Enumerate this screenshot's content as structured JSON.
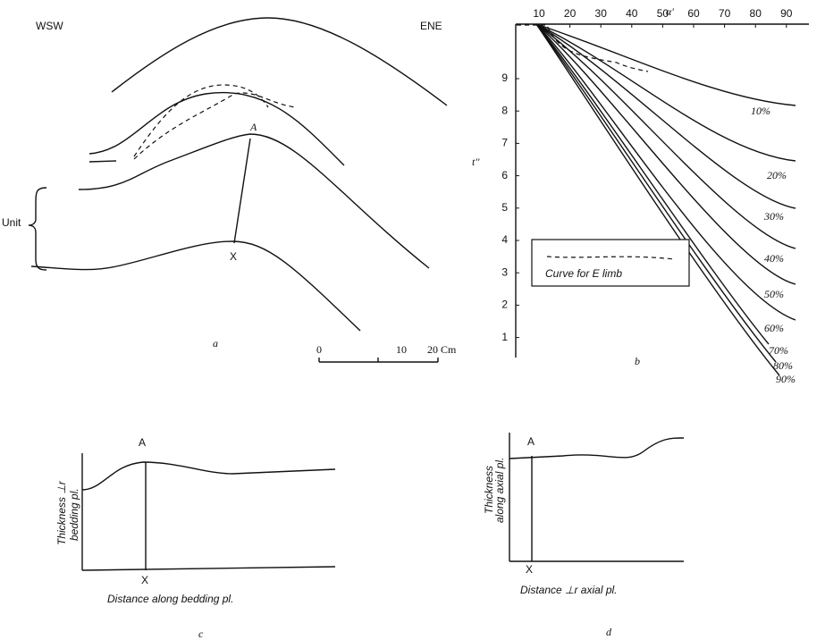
{
  "panel_a": {
    "left_label": "WSW",
    "right_label": "ENE",
    "point_top": "A",
    "point_bottom": "X",
    "bracket_label": "Unit",
    "panel_label": "a"
  },
  "scale_bar": {
    "ticks": [
      "0",
      "10",
      "20 Cm"
    ]
  },
  "panel_b": {
    "x_axis_label": "α'",
    "y_axis_label": "t''",
    "x_ticks": [
      10,
      20,
      30,
      40,
      50,
      60,
      70,
      80,
      90
    ],
    "y_ticks": [
      9,
      8,
      7,
      6,
      5,
      4,
      3,
      2,
      1
    ],
    "curve_labels": [
      "10%",
      "20%",
      "30%",
      "40%",
      "50%",
      "60%",
      "70%",
      "80%",
      "90%"
    ],
    "legend_label": "Curve for E limb",
    "panel_label": "b"
  },
  "panel_c": {
    "point_top": "A",
    "point_bottom": "X",
    "y_axis_label": [
      "Thickness ⊥r",
      "bedding pl."
    ],
    "x_axis_label": "Distance along bedding pl.",
    "panel_label": "c"
  },
  "panel_d": {
    "point_top": "A",
    "point_bottom": "X",
    "y_axis_label": [
      "Thickness",
      "along axial pl."
    ],
    "x_axis_label": "Distance ⊥r axial pl.",
    "panel_label": "d"
  }
}
